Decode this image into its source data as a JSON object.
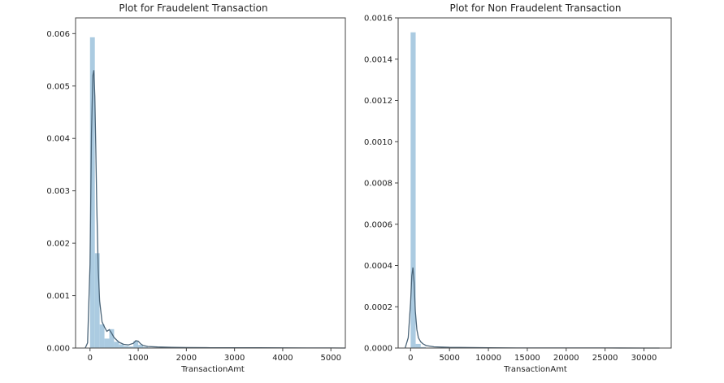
{
  "chart_data": [
    {
      "type": "bar",
      "subtype": "histogram-with-kde",
      "title": "Plot for Fraudelent Transaction",
      "xlabel": "TransactionAmt",
      "ylabel": "",
      "xlim": [
        -300,
        5300
      ],
      "ylim": [
        0,
        0.0063
      ],
      "xticks": [
        0,
        1000,
        2000,
        3000,
        4000,
        5000
      ],
      "xtick_labels": [
        "0",
        "1000",
        "2000",
        "3000",
        "4000",
        "5000"
      ],
      "yticks": [
        0,
        0.001,
        0.002,
        0.003,
        0.004,
        0.005,
        0.006
      ],
      "ytick_labels": [
        "0.000",
        "0.001",
        "0.002",
        "0.003",
        "0.004",
        "0.005",
        "0.006"
      ],
      "bar_color": "#a6c8df",
      "line_color": "#4a6478",
      "bins": [
        {
          "x0": 0,
          "x1": 100,
          "y": 0.00593
        },
        {
          "x0": 100,
          "x1": 200,
          "y": 0.00181
        },
        {
          "x0": 200,
          "x1": 300,
          "y": 0.00045
        },
        {
          "x0": 300,
          "x1": 400,
          "y": 0.00018
        },
        {
          "x0": 400,
          "x1": 500,
          "y": 0.00036
        },
        {
          "x0": 500,
          "x1": 600,
          "y": 0.00012
        },
        {
          "x0": 600,
          "x1": 700,
          "y": 7e-05
        },
        {
          "x0": 700,
          "x1": 800,
          "y": 4e-05
        },
        {
          "x0": 800,
          "x1": 900,
          "y": 3e-05
        },
        {
          "x0": 900,
          "x1": 1000,
          "y": 0.00013
        },
        {
          "x0": 1000,
          "x1": 1100,
          "y": 6e-05
        },
        {
          "x0": 1100,
          "x1": 1200,
          "y": 2e-05
        },
        {
          "x0": 1200,
          "x1": 1300,
          "y": 1e-05
        },
        {
          "x0": 1300,
          "x1": 1400,
          "y": 1e-05
        },
        {
          "x0": 1500,
          "x1": 1600,
          "y": 1e-05
        }
      ],
      "kde": {
        "x": [
          -100,
          -50,
          0,
          30,
          60,
          80,
          100,
          120,
          140,
          170,
          200,
          250,
          300,
          350,
          400,
          450,
          500,
          600,
          700,
          800,
          900,
          950,
          1000,
          1050,
          1100,
          1200,
          1400,
          1700,
          2000,
          2500,
          3000,
          3500,
          4000,
          4500,
          5000,
          5300
        ],
        "y": [
          0,
          0.0001,
          0.0016,
          0.0041,
          0.0052,
          0.0053,
          0.0048,
          0.0038,
          0.0027,
          0.0015,
          0.0009,
          0.0005,
          0.0004,
          0.00032,
          0.00035,
          0.00028,
          0.0002,
          0.00011,
          7e-05,
          6e-05,
          9e-05,
          0.00014,
          0.00013,
          8e-05,
          5e-05,
          3e-05,
          2e-05,
          1.2e-05,
          1e-05,
          6e-06,
          5e-06,
          4e-06,
          3e-06,
          2e-06,
          1e-06,
          0
        ]
      }
    },
    {
      "type": "bar",
      "subtype": "histogram-with-kde",
      "title": "Plot for Non Fraudelent Transaction",
      "xlabel": "TransactionAmt",
      "ylabel": "",
      "xlim": [
        -1600,
        33500
      ],
      "ylim": [
        0,
        0.0016
      ],
      "xticks": [
        0,
        5000,
        10000,
        15000,
        20000,
        25000,
        30000
      ],
      "xtick_labels": [
        "0",
        "5000",
        "10000",
        "15000",
        "20000",
        "25000",
        "30000"
      ],
      "yticks": [
        0,
        0.0002,
        0.0004,
        0.0006,
        0.0008,
        0.001,
        0.0012,
        0.0014,
        0.0016
      ],
      "ytick_labels": [
        "0.0000",
        "0.0002",
        "0.0004",
        "0.0006",
        "0.0008",
        "0.0010",
        "0.0012",
        "0.0014",
        "0.0016"
      ],
      "bar_color": "#a6c8df",
      "line_color": "#4a6478",
      "bins": [
        {
          "x0": 0,
          "x1": 650,
          "y": 0.00153
        },
        {
          "x0": 650,
          "x1": 1300,
          "y": 2e-05
        },
        {
          "x0": 1300,
          "x1": 1950,
          "y": 5e-06
        }
      ],
      "kde": {
        "x": [
          -700,
          -300,
          0,
          150,
          300,
          450,
          600,
          800,
          1000,
          1300,
          1600,
          2000,
          3000,
          5000,
          10000,
          15000,
          20000,
          25000,
          30000,
          32000
        ],
        "y": [
          0,
          5e-05,
          0.00022,
          0.00035,
          0.00039,
          0.00032,
          0.00018,
          9e-05,
          5e-05,
          3e-05,
          2e-05,
          1.2e-05,
          6e-06,
          3e-06,
          1e-06,
          5e-07,
          3e-07,
          2e-07,
          1e-07,
          0
        ]
      }
    }
  ]
}
